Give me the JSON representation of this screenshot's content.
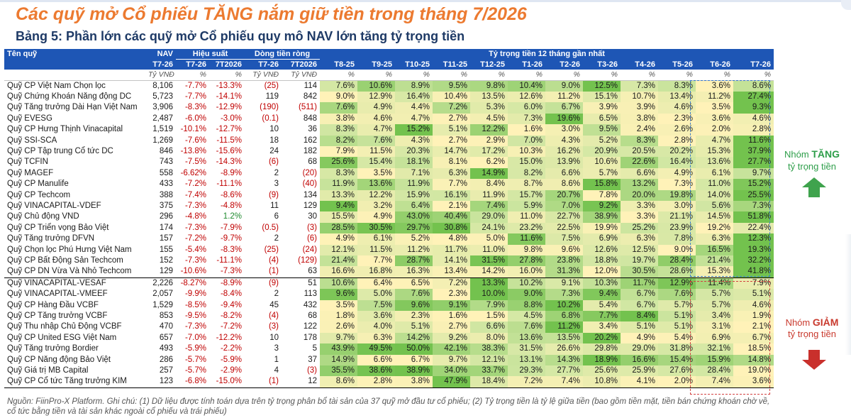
{
  "title": "Các quỹ mở Cổ phiếu TĂNG nắm giữ tiền trong tháng 7/2026",
  "subtitle": "Bảng 5: Phần lớn các quỹ mở Cổ phiếu quy mô NAV lớn tăng tỷ trọng tiền",
  "colors": {
    "title": "#ec7a30",
    "subtitle": "#1e3a66",
    "header_bg": "#1e56b5",
    "heat_low": "#fff2b8",
    "heat_mid": "#cfe6a2",
    "heat_high": "#73c24e",
    "up_box": "#3a78c9",
    "down_box": "#d24141",
    "up_label": "#2e9e4a",
    "down_label": "#c93a2e"
  },
  "header": {
    "fund": "Tên quỹ",
    "nav": "NAV",
    "performance": "Hiệu suất",
    "flow": "Dòng tiền ròng",
    "cash_weight": "Tỷ trọng tiền 12 tháng gần nhất",
    "cols": [
      "T7-26",
      "T7-26",
      "7T2026",
      "T7-26",
      "7T2026",
      "T8-25",
      "T9-25",
      "T10-25",
      "T11-25",
      "T12-25",
      "T1-26",
      "T2-26",
      "T3-26",
      "T4-26",
      "T5-26",
      "T6-26",
      "T7-26"
    ],
    "units": [
      "Tỷ VNĐ",
      "%",
      "%",
      "Tỷ VNĐ",
      "Tỷ VNĐ",
      "%",
      "%",
      "%",
      "%",
      "%",
      "%",
      "%",
      "%",
      "%",
      "%",
      "%",
      "%"
    ]
  },
  "rows": [
    {
      "fund": "Quỹ  CP Việt Nam Chọn lọc",
      "nav": "8,106",
      "p1": "-7.7%",
      "p2": "-13.3%",
      "f1": "(25)",
      "f2": "114",
      "w": [
        "7.6%",
        "10.6%",
        "8.9%",
        "9.5%",
        "9.8%",
        "10.4%",
        "9.0%",
        "12.5%",
        "7.3%",
        "8.3%",
        "3.6%",
        "8.6%"
      ]
    },
    {
      "fund": "Quỹ  Chứng Khoán Năng động DC",
      "nav": "5,723",
      "p1": "-7.7%",
      "p2": "-14.1%",
      "f1": "119",
      "f2": "842",
      "w": [
        "9.0%",
        "12.9%",
        "16.4%",
        "10.4%",
        "13.5%",
        "12.6%",
        "11.2%",
        "15.1%",
        "10.7%",
        "13.4%",
        "11.2%",
        "27.4%"
      ]
    },
    {
      "fund": "Quỹ Tăng trưởng Dài Hạn Việt Nam",
      "nav": "3,906",
      "p1": "-8.3%",
      "p2": "-12.9%",
      "f1": "(190)",
      "f2": "(511)",
      "w": [
        "7.6%",
        "4.9%",
        "4.4%",
        "7.2%",
        "5.3%",
        "6.0%",
        "6.7%",
        "3.9%",
        "3.9%",
        "4.6%",
        "3.5%",
        "9.3%"
      ]
    },
    {
      "fund": "Quỹ EVESG",
      "nav": "2,487",
      "p1": "-6.0%",
      "p2": "-3.0%",
      "f1": "(0.1)",
      "f2": "848",
      "w": [
        "3.8%",
        "4.6%",
        "4.7%",
        "2.7%",
        "4.5%",
        "7.3%",
        "19.6%",
        "6.5%",
        "3.8%",
        "2.3%",
        "3.6%",
        "4.6%"
      ]
    },
    {
      "fund": "Quỹ CP Hưng Thịnh Vinacapital",
      "nav": "1,519",
      "p1": "-10.1%",
      "p2": "-12.7%",
      "f1": "10",
      "f2": "36",
      "w": [
        "8.3%",
        "4.7%",
        "15.2%",
        "5.1%",
        "12.2%",
        "1.6%",
        "3.0%",
        "9.5%",
        "2.4%",
        "2.6%",
        "2.0%",
        "2.8%"
      ]
    },
    {
      "fund": "Quỹ SSI-SCA",
      "nav": "1,269",
      "p1": "-7.6%",
      "p2": "-11.5%",
      "f1": "18",
      "f2": "162",
      "w": [
        "8.2%",
        "7.6%",
        "4.3%",
        "2.7%",
        "2.9%",
        "7.0%",
        "4.3%",
        "5.2%",
        "8.3%",
        "2.8%",
        "4.7%",
        "11.6%"
      ]
    },
    {
      "fund": "Quỹ CP Tập trung Cổ tức DC",
      "nav": "846",
      "p1": "-13.8%",
      "p2": "-15.6%",
      "f1": "24",
      "f2": "182",
      "w": [
        "7.9%",
        "11.5%",
        "20.3%",
        "14.7%",
        "17.2%",
        "10.3%",
        "16.2%",
        "20.9%",
        "20.5%",
        "20.2%",
        "15.3%",
        "37.9%"
      ]
    },
    {
      "fund": "Quỹ TCFIN",
      "nav": "743",
      "p1": "-7.5%",
      "p2": "-14.3%",
      "f1": "(6)",
      "f2": "68",
      "w": [
        "25.6%",
        "15.4%",
        "18.1%",
        "8.1%",
        "6.2%",
        "15.0%",
        "13.9%",
        "10.6%",
        "22.6%",
        "16.4%",
        "13.6%",
        "27.7%"
      ]
    },
    {
      "fund": "Quỹ MAGEF",
      "nav": "558",
      "p1": "-6.62%",
      "p2": "-8.9%",
      "f1": "2",
      "f2": "(20)",
      "w": [
        "8.3%",
        "3.5%",
        "7.1%",
        "6.3%",
        "14.9%",
        "8.2%",
        "6.6%",
        "5.7%",
        "6.6%",
        "4.9%",
        "6.1%",
        "9.7%"
      ]
    },
    {
      "fund": "Quỹ CP Manulife",
      "nav": "433",
      "p1": "-7.2%",
      "p2": "-11.1%",
      "f1": "3",
      "f2": "(40)",
      "w": [
        "11.9%",
        "13.6%",
        "11.9%",
        "7.7%",
        "8.4%",
        "8.7%",
        "8.6%",
        "15.8%",
        "13.2%",
        "7.3%",
        "11.0%",
        "15.2%"
      ]
    },
    {
      "fund": "Quỹ CP Techcom",
      "nav": "388",
      "p1": "-7.4%",
      "p2": "-8.6%",
      "f1": "(9)",
      "f2": "134",
      "w": [
        "13.3%",
        "12.2%",
        "15.9%",
        "16.1%",
        "11.9%",
        "15.7%",
        "20.7%",
        "7.8%",
        "20.0%",
        "19.8%",
        "14.0%",
        "25.5%"
      ]
    },
    {
      "fund": "Quỹ  VINACAPITAL-VDEF",
      "nav": "375",
      "p1": "-7.3%",
      "p2": "-4.8%",
      "f1": "11",
      "f2": "129",
      "w": [
        "9.4%",
        "3.2%",
        "6.4%",
        "2.1%",
        "7.4%",
        "5.9%",
        "7.0%",
        "9.2%",
        "3.3%",
        "3.0%",
        "5.6%",
        "7.3%"
      ]
    },
    {
      "fund": "Quỹ Chủ động VND",
      "nav": "296",
      "p1": "-4.8%",
      "p2": "1.2%",
      "f1": "6",
      "f2": "30",
      "w": [
        "15.5%",
        "4.9%",
        "43.0%",
        "40.4%",
        "29.0%",
        "11.0%",
        "22.7%",
        "38.9%",
        "3.3%",
        "21.1%",
        "14.5%",
        "51.8%"
      ]
    },
    {
      "fund": "Quỹ CP Triển vọng Bảo Việt",
      "nav": "174",
      "p1": "-7.3%",
      "p2": "-7.9%",
      "f1": "(0.5)",
      "f2": "(3)",
      "w": [
        "28.5%",
        "30.5%",
        "29.7%",
        "30.8%",
        "24.1%",
        "23.2%",
        "22.5%",
        "19.9%",
        "25.2%",
        "23.9%",
        "19.2%",
        "22.4%"
      ]
    },
    {
      "fund": "Quỹ Tăng trưởng DFVN",
      "nav": "157",
      "p1": "-7.2%",
      "p2": "-9.7%",
      "f1": "2",
      "f2": "(6)",
      "w": [
        "4.9%",
        "6.1%",
        "5.2%",
        "4.8%",
        "5.0%",
        "11.6%",
        "7.5%",
        "6.9%",
        "6.3%",
        "7.8%",
        "6.3%",
        "12.3%"
      ]
    },
    {
      "fund": "Quỹ Chọn lọc Phú Hưng Việt Nam",
      "nav": "155",
      "p1": "-5.4%",
      "p2": "-8.3%",
      "f1": "(25)",
      "f2": "(24)",
      "w": [
        "12.1%",
        "11.5%",
        "11.2%",
        "11.7%",
        "11.0%",
        "9.8%",
        "9.6%",
        "12.6%",
        "12.5%",
        "9.0%",
        "16.5%",
        "19.3%"
      ]
    },
    {
      "fund": "Quỹ CP Bất Động Sản Techcom",
      "nav": "152",
      "p1": "-7.3%",
      "p2": "-11.1%",
      "f1": "(4)",
      "f2": "(129)",
      "w": [
        "21.4%",
        "7.7%",
        "28.7%",
        "14.1%",
        "31.5%",
        "27.8%",
        "23.8%",
        "18.8%",
        "19.7%",
        "28.4%",
        "21.4%",
        "32.2%"
      ]
    },
    {
      "fund": "Quỹ CP DN Vừa Và Nhỏ Techcom",
      "nav": "129",
      "p1": "-10.6%",
      "p2": "-7.3%",
      "f1": "(1)",
      "f2": "63",
      "w": [
        "16.6%",
        "16.8%",
        "16.3%",
        "13.4%",
        "14.2%",
        "16.0%",
        "31.3%",
        "12.0%",
        "30.5%",
        "28.6%",
        "15.3%",
        "41.8%"
      ]
    },
    {
      "fund": "Quỹ  VINACAPITAL-VESAF",
      "nav": "2,226",
      "p1": "-8.27%",
      "p2": "-8.9%",
      "f1": "(9)",
      "f2": "51",
      "w": [
        "10.6%",
        "6.4%",
        "6.5%",
        "7.2%",
        "13.3%",
        "10.2%",
        "9.1%",
        "10.3%",
        "11.7%",
        "12.9%",
        "11.4%",
        "7.9%"
      ]
    },
    {
      "fund": "Quỹ  VINACAPITAL-VMEEF",
      "nav": "2,057",
      "p1": "-9.9%",
      "p2": "-8.4%",
      "f1": "2",
      "f2": "113",
      "w": [
        "9.6%",
        "5.0%",
        "7.6%",
        "2.3%",
        "10.0%",
        "9.0%",
        "7.3%",
        "9.4%",
        "6.7%",
        "7.6%",
        "5.7%",
        "5.1%"
      ]
    },
    {
      "fund": "Quỹ CP Hàng Đầu VCBF",
      "nav": "1,529",
      "p1": "-8.5%",
      "p2": "-9.4%",
      "f1": "45",
      "f2": "432",
      "w": [
        "3.5%",
        "7.5%",
        "9.6%",
        "9.1%",
        "7.9%",
        "8.8%",
        "10.2%",
        "5.4%",
        "6.7%",
        "5.7%",
        "5.7%",
        "4.6%"
      ]
    },
    {
      "fund": "Quỹ CP Tăng trưởng VCBF",
      "nav": "853",
      "p1": "-9.5%",
      "p2": "-8.2%",
      "f1": "(4)",
      "f2": "68",
      "w": [
        "1.8%",
        "3.6%",
        "2.3%",
        "1.6%",
        "1.5%",
        "4.5%",
        "6.8%",
        "7.7%",
        "8.4%",
        "5.1%",
        "3.4%",
        "1.9%"
      ]
    },
    {
      "fund": "Quỹ  Thu nhập Chủ Động VCBF",
      "nav": "470",
      "p1": "-7.3%",
      "p2": "-7.2%",
      "f1": "(3)",
      "f2": "122",
      "w": [
        "2.6%",
        "4.0%",
        "5.1%",
        "2.7%",
        "6.6%",
        "7.6%",
        "11.2%",
        "3.4%",
        "5.1%",
        "5.1%",
        "3.1%",
        "2.1%"
      ]
    },
    {
      "fund": "Quỹ  CP United ESG Việt Nam",
      "nav": "657",
      "p1": "-7.0%",
      "p2": "-12.2%",
      "f1": "10",
      "f2": "178",
      "w": [
        "9.7%",
        "6.3%",
        "14.2%",
        "9.2%",
        "8.0%",
        "13.6%",
        "13.5%",
        "20.2%",
        "4.9%",
        "5.4%",
        "6.9%",
        "6.7%"
      ]
    },
    {
      "fund": "Quỹ Tăng trưởng Bordier",
      "nav": "493",
      "p1": "-5.9%",
      "p2": "-2.2%",
      "f1": "3",
      "f2": "5",
      "w": [
        "43.9%",
        "49.5%",
        "50.0%",
        "42.1%",
        "38.3%",
        "31.5%",
        "26.6%",
        "29.8%",
        "29.0%",
        "31.8%",
        "32.1%",
        "18.5%"
      ]
    },
    {
      "fund": "Quỹ CP Năng động Bảo Việt",
      "nav": "286",
      "p1": "-5.7%",
      "p2": "-5.9%",
      "f1": "1",
      "f2": "37",
      "w": [
        "14.9%",
        "6.6%",
        "6.7%",
        "9.7%",
        "12.1%",
        "13.1%",
        "14.3%",
        "18.9%",
        "16.6%",
        "15.4%",
        "15.9%",
        "14.8%"
      ]
    },
    {
      "fund": "Quỹ Giá trị MB Capital",
      "nav": "257",
      "p1": "-5.7%",
      "p2": "-2.9%",
      "f1": "4",
      "f2": "(3)",
      "w": [
        "35.5%",
        "38.6%",
        "38.9%",
        "34.0%",
        "33.7%",
        "29.3%",
        "27.7%",
        "25.6%",
        "25.9%",
        "27.6%",
        "28.4%",
        "19.0%"
      ]
    },
    {
      "fund": "Quỹ CP Cổ tức Tăng trưởng KIM",
      "nav": "123",
      "p1": "-6.8%",
      "p2": "-15.0%",
      "f1": "(1)",
      "f2": "12",
      "w": [
        "8.6%",
        "2.8%",
        "3.8%",
        "47.9%",
        "18.4%",
        "7.2%",
        "7.4%",
        "10.8%",
        "4.1%",
        "2.0%",
        "7.4%",
        "3.6%"
      ]
    }
  ],
  "side": {
    "up_title_prefix": "Nhóm ",
    "up_title_strong": "TĂNG",
    "up_sub": "tỷ trọng tiền",
    "down_title_prefix": "Nhóm ",
    "down_title_strong": "GIẢM",
    "down_sub": "tỷ trọng tiền"
  },
  "footnote": "Nguồn: FiinPro-X Platform. Ghi chú: (1) Dữ liệu được tính toán dựa trên tỷ trọng phân bổ tài sản của 37 quỹ mở đầu tư cổ phiếu; (2) Tỷ trọng tiền là tỷ lệ giữa tiền (bao gồm tiền mặt, tiền bán chứng khoán chờ về, cổ tức bằng tiền và tài sản khác ngoài cổ phiếu và trái phiếu)"
}
